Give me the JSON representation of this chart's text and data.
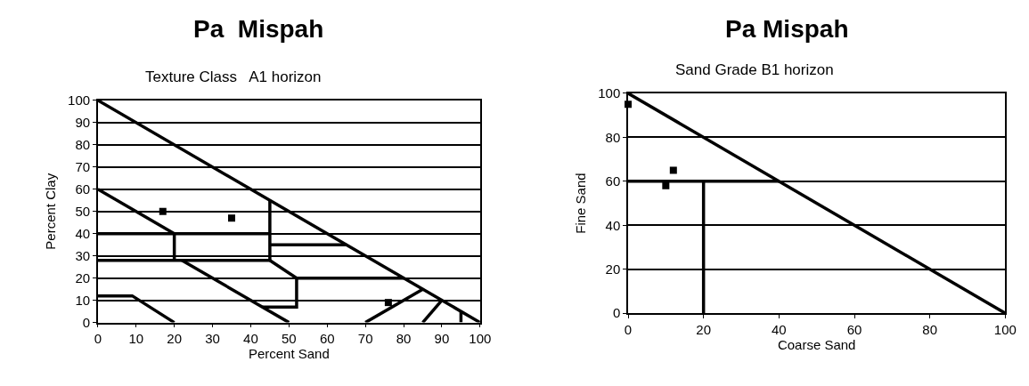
{
  "chart_data": [
    {
      "type": "line",
      "title": "Pa  Mispah",
      "subtitle": "Texture Class   A1 horizon",
      "xlabel": "Percent Sand",
      "ylabel": "Percent Clay",
      "xlim": [
        0,
        100
      ],
      "xticks": [
        0,
        10,
        20,
        30,
        40,
        50,
        60,
        70,
        80,
        90,
        100
      ],
      "ylim": [
        0,
        100
      ],
      "yticks": [
        0,
        10,
        20,
        30,
        40,
        50,
        60,
        70,
        80,
        90,
        100
      ],
      "grid": "y",
      "line_style": "solid",
      "series": [
        {
          "color": "#000000",
          "x": [
            0,
            100
          ],
          "values": [
            100,
            0
          ]
        },
        {
          "color": "#000000",
          "x": [
            0,
            20
          ],
          "values": [
            60,
            40
          ]
        },
        {
          "color": "#000000",
          "x": [
            0,
            45
          ],
          "values": [
            40,
            40
          ]
        },
        {
          "color": "#000000",
          "x": [
            20,
            20
          ],
          "values": [
            40,
            28
          ]
        },
        {
          "color": "#000000",
          "x": [
            0,
            45
          ],
          "values": [
            28,
            28
          ]
        },
        {
          "color": "#000000",
          "x": [
            45,
            45
          ],
          "values": [
            55,
            28
          ]
        },
        {
          "color": "#000000",
          "x": [
            45,
            65
          ],
          "values": [
            35,
            35
          ]
        },
        {
          "color": "#000000",
          "x": [
            45,
            52,
            80
          ],
          "values": [
            28,
            20,
            20
          ]
        },
        {
          "color": "#000000",
          "x": [
            52,
            52,
            43
          ],
          "values": [
            20,
            7,
            7
          ]
        },
        {
          "color": "#000000",
          "x": [
            22,
            50
          ],
          "values": [
            28,
            0
          ]
        },
        {
          "color": "#000000",
          "x": [
            0,
            9,
            20
          ],
          "values": [
            12,
            12,
            0
          ]
        },
        {
          "color": "#000000",
          "x": [
            70,
            85
          ],
          "values": [
            0,
            15
          ]
        },
        {
          "color": "#000000",
          "x": [
            85,
            90
          ],
          "values": [
            0,
            10
          ]
        },
        {
          "color": "#000000",
          "x": [
            95,
            95
          ],
          "values": [
            0,
            5
          ]
        },
        {
          "type": "scatter",
          "marker": "square",
          "color": "#000000",
          "x": [
            17,
            35,
            76
          ],
          "values": [
            50,
            47,
            9
          ]
        }
      ]
    },
    {
      "type": "line",
      "title": "Pa Mispah",
      "subtitle": "Sand Grade B1 horizon",
      "xlabel": "Coarse Sand",
      "ylabel": "Fine Sand",
      "xlim": [
        0,
        100
      ],
      "xticks": [
        0,
        20,
        40,
        60,
        80,
        100
      ],
      "ylim": [
        0,
        100
      ],
      "yticks": [
        0,
        20,
        40,
        60,
        80,
        100
      ],
      "grid": "y",
      "line_style": "solid",
      "series": [
        {
          "color": "#000000",
          "x": [
            0,
            100
          ],
          "values": [
            100,
            0
          ]
        },
        {
          "color": "#000000",
          "x": [
            0,
            40
          ],
          "values": [
            60,
            60
          ]
        },
        {
          "color": "#000000",
          "x": [
            20,
            20
          ],
          "values": [
            60,
            0
          ]
        },
        {
          "type": "scatter",
          "marker": "square",
          "color": "#000000",
          "x": [
            0,
            10,
            12
          ],
          "values": [
            95,
            58,
            65
          ]
        }
      ]
    }
  ]
}
